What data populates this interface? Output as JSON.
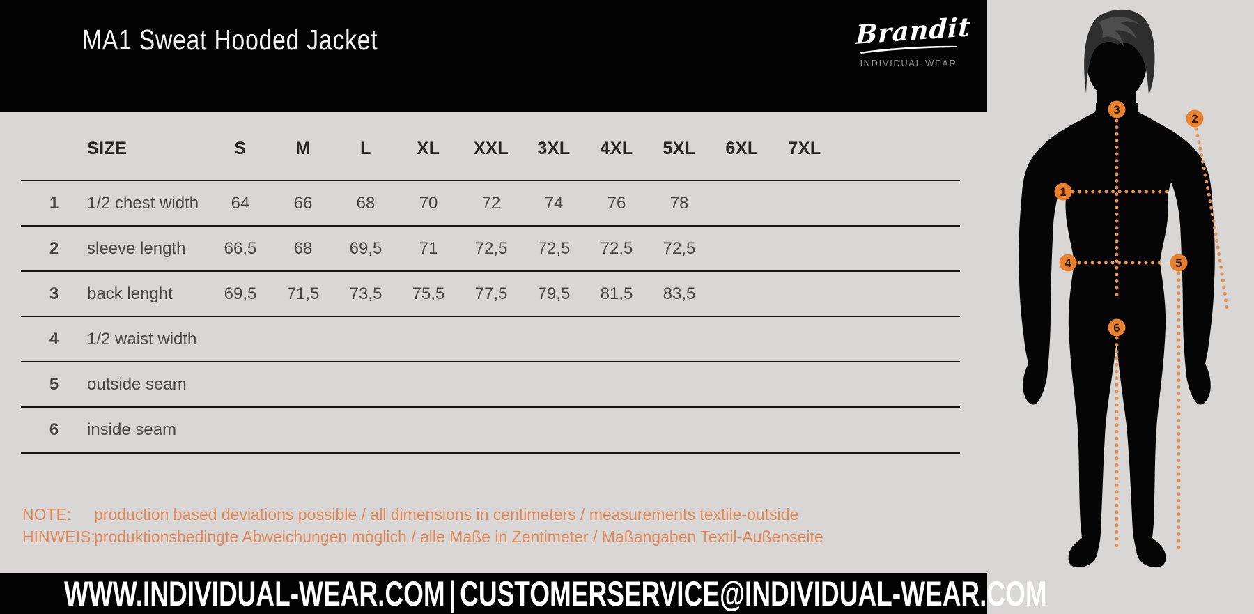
{
  "header": {
    "title": "MA1 Sweat Hooded Jacket",
    "brand": {
      "name": "Brandit",
      "tagline": "INDIVIDUAL WEAR"
    }
  },
  "size_table": {
    "size_label": "SIZE",
    "sizes": [
      "S",
      "M",
      "L",
      "XL",
      "XXL",
      "3XL",
      "4XL",
      "5XL",
      "6XL",
      "7XL"
    ],
    "rows": [
      {
        "num": "1",
        "label": "1/2 chest width",
        "values": [
          "64",
          "66",
          "68",
          "70",
          "72",
          "74",
          "76",
          "78",
          "",
          ""
        ]
      },
      {
        "num": "2",
        "label": "sleeve length",
        "values": [
          "66,5",
          "68",
          "69,5",
          "71",
          "72,5",
          "72,5",
          "72,5",
          "72,5",
          "",
          ""
        ]
      },
      {
        "num": "3",
        "label": "back lenght",
        "values": [
          "69,5",
          "71,5",
          "73,5",
          "75,5",
          "77,5",
          "79,5",
          "81,5",
          "83,5",
          "",
          ""
        ]
      },
      {
        "num": "4",
        "label": "1/2 waist width",
        "values": [
          "",
          "",
          "",
          "",
          "",
          "",
          "",
          "",
          "",
          ""
        ]
      },
      {
        "num": "5",
        "label": "outside seam",
        "values": [
          "",
          "",
          "",
          "",
          "",
          "",
          "",
          "",
          "",
          ""
        ]
      },
      {
        "num": "6",
        "label": "inside seam",
        "values": [
          "",
          "",
          "",
          "",
          "",
          "",
          "",
          "",
          "",
          ""
        ]
      }
    ]
  },
  "chart_data": {
    "type": "table",
    "title": "MA1 Sweat Hooded Jacket",
    "categories": [
      "S",
      "M",
      "L",
      "XL",
      "XXL",
      "3XL",
      "4XL",
      "5XL",
      "6XL",
      "7XL"
    ],
    "series": [
      {
        "name": "1/2 chest width",
        "values": [
          64,
          66,
          68,
          70,
          72,
          74,
          76,
          78,
          null,
          null
        ]
      },
      {
        "name": "sleeve length",
        "values": [
          66.5,
          68,
          69.5,
          71,
          72.5,
          72.5,
          72.5,
          72.5,
          null,
          null
        ]
      },
      {
        "name": "back lenght",
        "values": [
          69.5,
          71.5,
          73.5,
          75.5,
          77.5,
          79.5,
          81.5,
          83.5,
          null,
          null
        ]
      },
      {
        "name": "1/2 waist width",
        "values": [
          null,
          null,
          null,
          null,
          null,
          null,
          null,
          null,
          null,
          null
        ]
      },
      {
        "name": "outside seam",
        "values": [
          null,
          null,
          null,
          null,
          null,
          null,
          null,
          null,
          null,
          null
        ]
      },
      {
        "name": "inside seam",
        "values": [
          null,
          null,
          null,
          null,
          null,
          null,
          null,
          null,
          null,
          null
        ]
      }
    ],
    "units": "centimeters"
  },
  "notes": {
    "note_label": "NOTE:",
    "note_text": "production based deviations possible / all dimensions in centimeters / measurements textile-outside",
    "hinweis_label": "HINWEIS:",
    "hinweis_text": "produktionsbedingte Abweichungen möglich / alle Maße in Zentimeter / Maßangaben Textil-Außenseite"
  },
  "footer": {
    "website": "WWW.INDIVIDUAL-WEAR.COM",
    "separator": "|",
    "email": "CUSTOMERSERVICE@INDIVIDUAL-WEAR.COM"
  },
  "figure": {
    "markers": {
      "m1": "1",
      "m2": "2",
      "m3": "3",
      "m4": "4",
      "m5": "5",
      "m6": "6"
    }
  },
  "colors": {
    "background": "#d8d7d5",
    "bar_black": "#030303",
    "marker_orange": "#e8802d",
    "dot_orange": "#e5914f",
    "note_orange": "#e0885a",
    "table_line": "#161616"
  }
}
